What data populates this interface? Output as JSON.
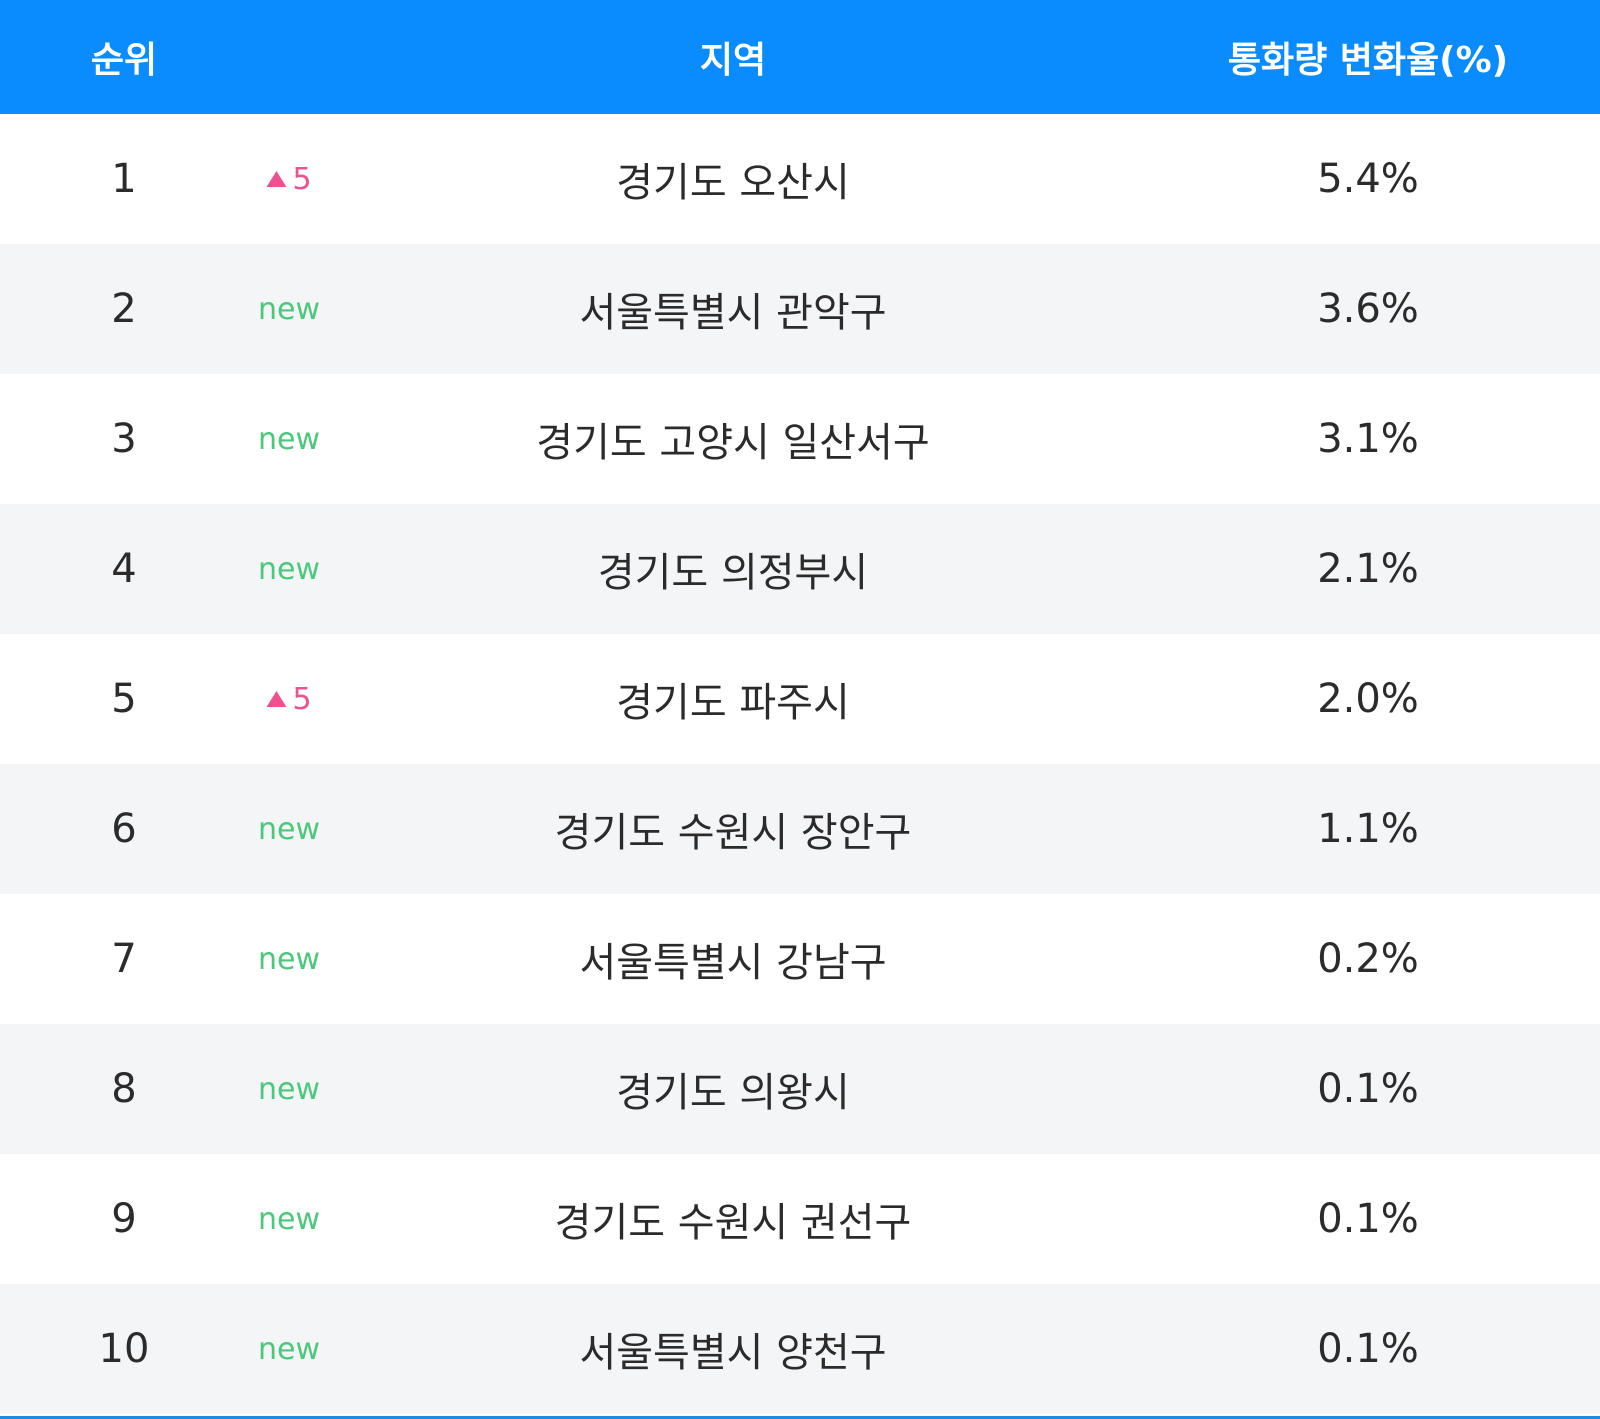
{
  "table": {
    "headers": [
      "순위",
      "지역",
      "통화량 변화율(%)"
    ],
    "rows": [
      {
        "rank": "1",
        "change": "5",
        "trend": "up",
        "region": "경기도 오산시",
        "rate": "5.4%"
      },
      {
        "rank": "2",
        "change": "new",
        "region": "서울특별시 관악구",
        "rate": "3.6%"
      },
      {
        "rank": "3",
        "change": "new",
        "region": "경기도 고양시 일산서구",
        "rate": "3.1%"
      },
      {
        "rank": "4",
        "change": "new",
        "region": "경기도 의정부시",
        "rate": "2.1%"
      },
      {
        "rank": "5",
        "change": "5",
        "trend": "up",
        "region": "경기도 파주시",
        "rate": "2.0%"
      },
      {
        "rank": "6",
        "change": "new",
        "region": "경기도 수원시 장안구",
        "rate": "1.1%"
      },
      {
        "rank": "7",
        "change": "new",
        "region": "서울특별시 강남구",
        "rate": "0.2%"
      },
      {
        "rank": "8",
        "change": "new",
        "region": "경기도 의왕시",
        "rate": "0.1%"
      },
      {
        "rank": "9",
        "change": "new",
        "region": "경기도 수원시 권선구",
        "rate": "0.1%"
      },
      {
        "rank": "10",
        "change": "new",
        "region": "서울특별시 양천구",
        "rate": "0.1%"
      }
    ]
  }
}
